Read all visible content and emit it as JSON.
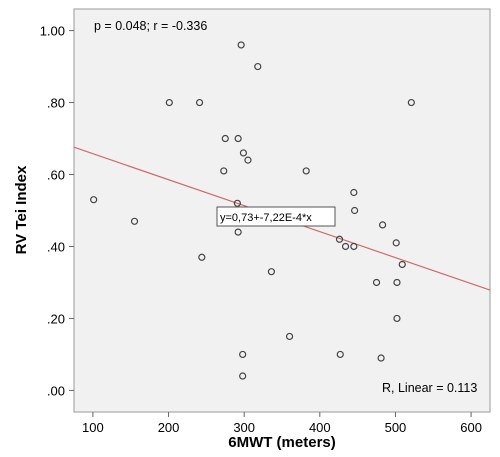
{
  "chart_data": {
    "type": "scatter",
    "title": "",
    "xlabel": "6MWT (meters)",
    "ylabel": "RV Tei Index",
    "xlim": [
      75,
      625
    ],
    "ylim": [
      -0.06,
      1.06
    ],
    "xticks": [
      100,
      200,
      300,
      400,
      500,
      600
    ],
    "xtick_labels": [
      "100",
      "200",
      "300",
      "400",
      "500",
      "600"
    ],
    "yticks": [
      0.0,
      0.2,
      0.4,
      0.6,
      0.8,
      1.0
    ],
    "ytick_labels": [
      ".00",
      ".20",
      ".40",
      ".60",
      ".80",
      "1.00"
    ],
    "grid": false,
    "background": "#f1f1f1",
    "marker_color": "#444444",
    "fit_color": "#d06a6a",
    "points": [
      {
        "x": 101,
        "y": 0.53
      },
      {
        "x": 155,
        "y": 0.47
      },
      {
        "x": 201,
        "y": 0.8
      },
      {
        "x": 241,
        "y": 0.8
      },
      {
        "x": 244,
        "y": 0.37
      },
      {
        "x": 275,
        "y": 0.7
      },
      {
        "x": 273,
        "y": 0.61
      },
      {
        "x": 291,
        "y": 0.52
      },
      {
        "x": 292,
        "y": 0.7
      },
      {
        "x": 292,
        "y": 0.44
      },
      {
        "x": 296,
        "y": 0.96
      },
      {
        "x": 299,
        "y": 0.66
      },
      {
        "x": 298,
        "y": 0.1
      },
      {
        "x": 298,
        "y": 0.04
      },
      {
        "x": 305,
        "y": 0.64
      },
      {
        "x": 318,
        "y": 0.9
      },
      {
        "x": 336,
        "y": 0.33
      },
      {
        "x": 360,
        "y": 0.15
      },
      {
        "x": 382,
        "y": 0.61
      },
      {
        "x": 426,
        "y": 0.42
      },
      {
        "x": 427,
        "y": 0.1
      },
      {
        "x": 434,
        "y": 0.4
      },
      {
        "x": 445,
        "y": 0.4
      },
      {
        "x": 445,
        "y": 0.55
      },
      {
        "x": 446,
        "y": 0.5
      },
      {
        "x": 475,
        "y": 0.3
      },
      {
        "x": 481,
        "y": 0.09
      },
      {
        "x": 483,
        "y": 0.46
      },
      {
        "x": 501,
        "y": 0.41
      },
      {
        "x": 502,
        "y": 0.3
      },
      {
        "x": 502,
        "y": 0.2
      },
      {
        "x": 509,
        "y": 0.35
      },
      {
        "x": 521,
        "y": 0.8
      }
    ],
    "fit_line": {
      "intercept": 0.73,
      "slope": -0.000722
    },
    "annotations": {
      "stats": "p = 0.048; r = -0.336",
      "equation": "y=0,73+-7,22E-4*x",
      "r_squared": "R, Linear = 0.113"
    }
  }
}
